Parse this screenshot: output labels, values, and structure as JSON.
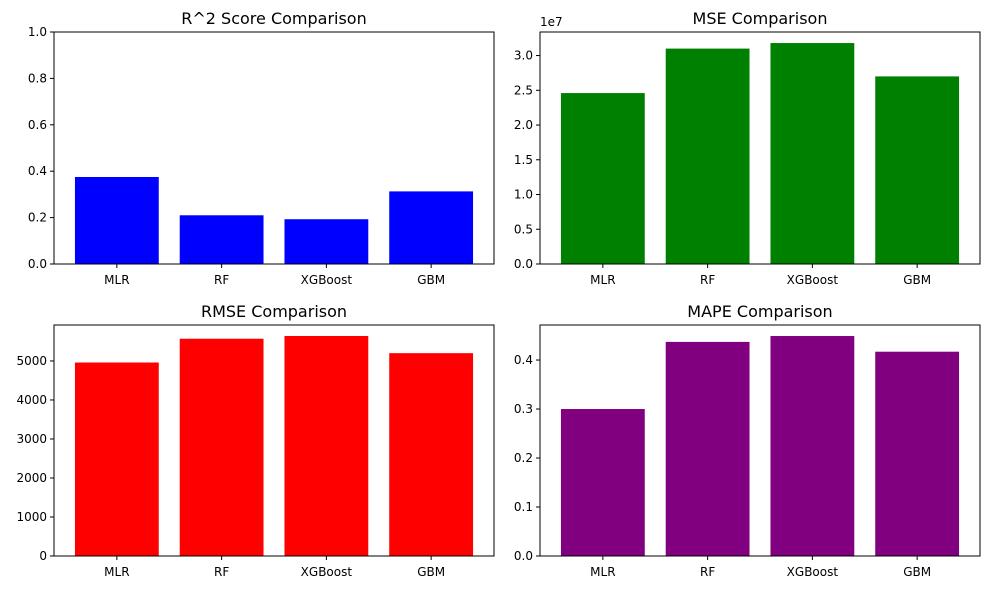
{
  "chart_data": [
    {
      "type": "bar",
      "title": "R^2 Score Comparison",
      "categories": [
        "MLR",
        "RF",
        "XGBoost",
        "GBM"
      ],
      "values": [
        0.375,
        0.21,
        0.193,
        0.313
      ],
      "color": "#0000ff",
      "ylim": [
        0,
        1.0
      ],
      "yticks": [
        "0.0",
        "0.2",
        "0.4",
        "0.6",
        "0.8",
        "1.0"
      ],
      "ytick_values": [
        0,
        0.2,
        0.4,
        0.6,
        0.8,
        1.0
      ],
      "offset_text": "",
      "xlabel": "",
      "ylabel": "",
      "grid": false
    },
    {
      "type": "bar",
      "title": "MSE Comparison",
      "categories": [
        "MLR",
        "RF",
        "XGBoost",
        "GBM"
      ],
      "values": [
        24600000,
        31000000,
        31800000,
        27000000
      ],
      "color": "#008000",
      "ylim": [
        0,
        33390000
      ],
      "yticks": [
        "0.0",
        "0.5",
        "1.0",
        "1.5",
        "2.0",
        "2.5",
        "3.0"
      ],
      "ytick_values": [
        0,
        5000000,
        10000000,
        15000000,
        20000000,
        25000000,
        30000000
      ],
      "offset_text": "1e7",
      "xlabel": "",
      "ylabel": "",
      "grid": false
    },
    {
      "type": "bar",
      "title": "RMSE Comparison",
      "categories": [
        "MLR",
        "RF",
        "XGBoost",
        "GBM"
      ],
      "values": [
        4960,
        5570,
        5640,
        5200
      ],
      "color": "#ff0000",
      "ylim": [
        0,
        5922
      ],
      "yticks": [
        "0",
        "1000",
        "2000",
        "3000",
        "4000",
        "5000"
      ],
      "ytick_values": [
        0,
        1000,
        2000,
        3000,
        4000,
        5000
      ],
      "offset_text": "",
      "xlabel": "",
      "ylabel": "",
      "grid": false
    },
    {
      "type": "bar",
      "title": "MAPE Comparison",
      "categories": [
        "MLR",
        "RF",
        "XGBoost",
        "GBM"
      ],
      "values": [
        0.3,
        0.437,
        0.449,
        0.417
      ],
      "color": "#800080",
      "ylim": [
        0,
        0.4715
      ],
      "yticks": [
        "0.0",
        "0.1",
        "0.2",
        "0.3",
        "0.4"
      ],
      "ytick_values": [
        0,
        0.1,
        0.2,
        0.3,
        0.4
      ],
      "offset_text": "",
      "xlabel": "",
      "ylabel": "",
      "grid": false
    }
  ]
}
